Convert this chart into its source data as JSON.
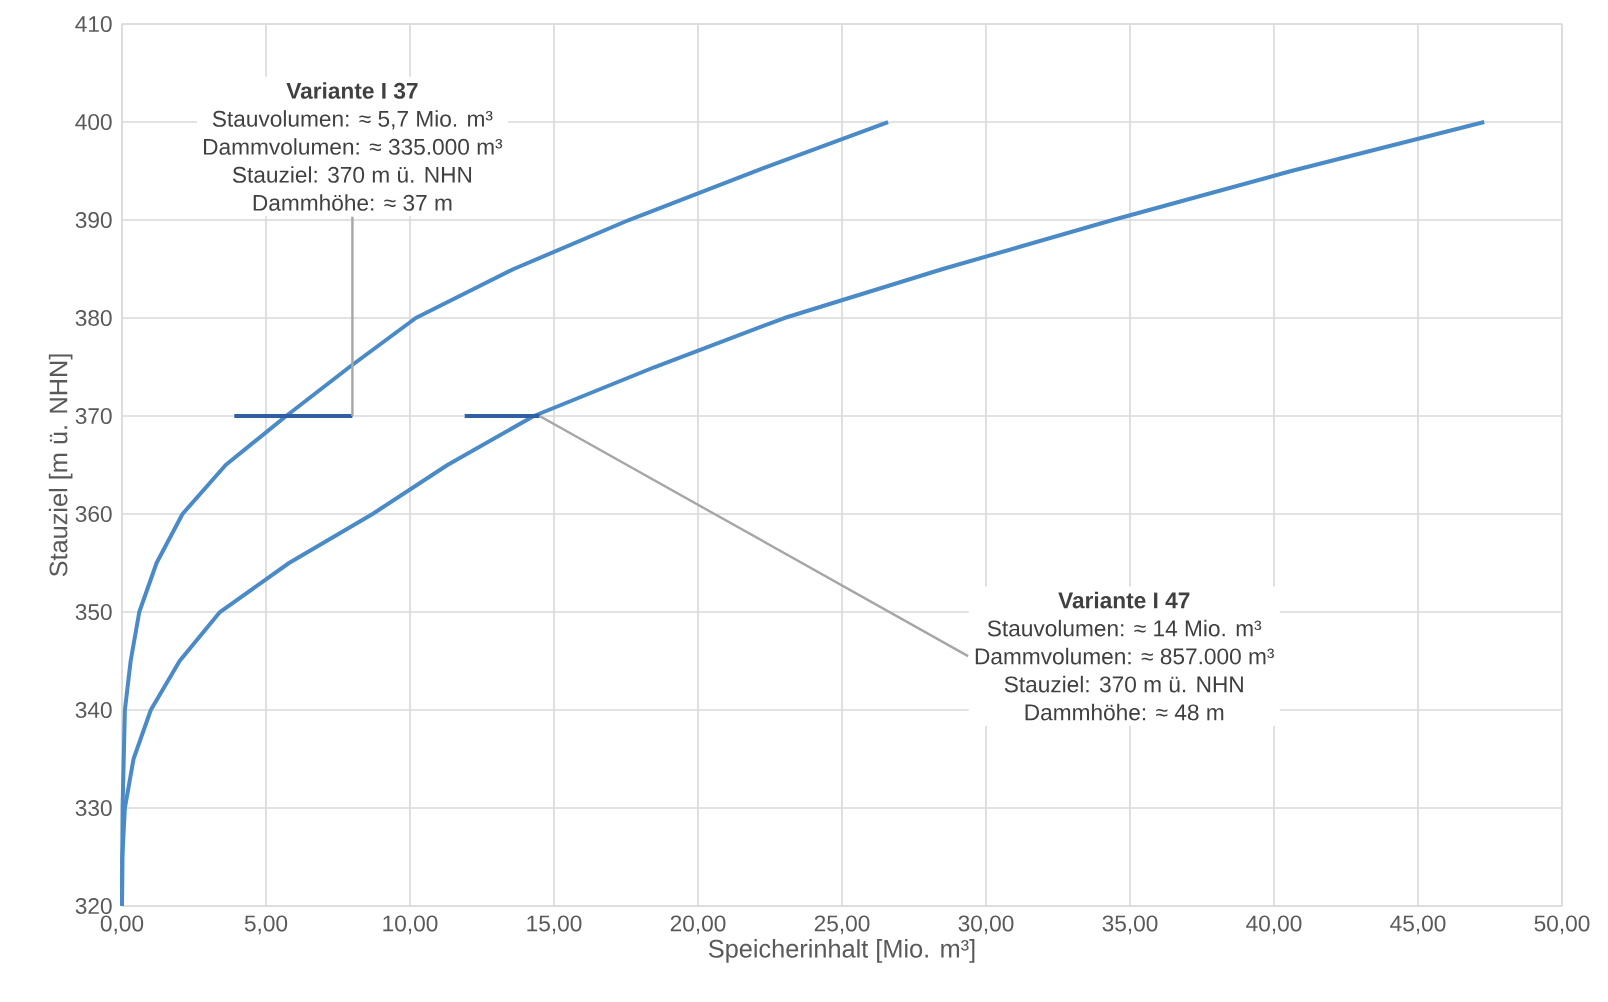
{
  "chart_data": {
    "type": "line",
    "xlabel": "Speicherinhalt [Mio. m³]",
    "ylabel": "Stauziel [m ü. NHN]",
    "xlim": [
      0,
      50
    ],
    "ylim": [
      320,
      410
    ],
    "xticks": [
      {
        "value": 0,
        "label": "0,00"
      },
      {
        "value": 5,
        "label": "5,00"
      },
      {
        "value": 10,
        "label": "10,00"
      },
      {
        "value": 15,
        "label": "15,00"
      },
      {
        "value": 20,
        "label": "20,00"
      },
      {
        "value": 25,
        "label": "25,00"
      },
      {
        "value": 30,
        "label": "30,00"
      },
      {
        "value": 35,
        "label": "35,00"
      },
      {
        "value": 40,
        "label": "40,00"
      },
      {
        "value": 45,
        "label": "45,00"
      },
      {
        "value": 50,
        "label": "50,00"
      }
    ],
    "yticks": [
      320,
      330,
      340,
      350,
      360,
      370,
      380,
      390,
      400,
      410
    ],
    "grid": true,
    "series": [
      {
        "color": "#4a8ac6",
        "x": [
          0,
          0.02,
          0.1,
          0.3,
          0.6,
          1.2,
          2.1,
          3.6,
          5.7,
          7.9,
          10.2,
          13.6,
          17.6,
          22.0,
          26.6
        ],
        "values": [
          320,
          330,
          340,
          345,
          350,
          355,
          360,
          365,
          370,
          375,
          380,
          385,
          390,
          395,
          400
        ]
      },
      {
        "color": "#4a8ac6",
        "x": [
          0,
          0.01,
          0.1,
          0.4,
          1.0,
          2.0,
          3.4,
          5.8,
          8.7,
          11.3,
          14.3,
          18.5,
          23.0,
          28.5,
          34.4,
          40.6,
          47.3
        ],
        "values": [
          320,
          325,
          330,
          335,
          340,
          345,
          350,
          355,
          360,
          365,
          370,
          375,
          380,
          385,
          390,
          395,
          400
        ]
      },
      {
        "color": "#2f5fa5",
        "x": [
          3.9,
          8.0
        ],
        "values": [
          370,
          370
        ]
      },
      {
        "color": "#2f5fa5",
        "x": [
          11.9,
          14.5
        ],
        "values": [
          370,
          370
        ]
      }
    ],
    "annotations": [
      {
        "text": "**Variante I 37**\nStauvolumen: ≈ 5,7 Mio. m³\nDammvolumen: ≈ 335.000 m³\nStauziel: 370 m ü. NHN\nDammhöhe: ≈ 37 m",
        "x": 8.0,
        "y": 370
      },
      {
        "text": "**Variante I 47**\nStauvolumen: ≈ 14 Mio. m³\nDammvolumen: ≈ 857.000 m³\nStauziel: 370 m ü. NHN\nDammhöhe: ≈ 48 m",
        "x": 14.5,
        "y": 370
      }
    ]
  }
}
